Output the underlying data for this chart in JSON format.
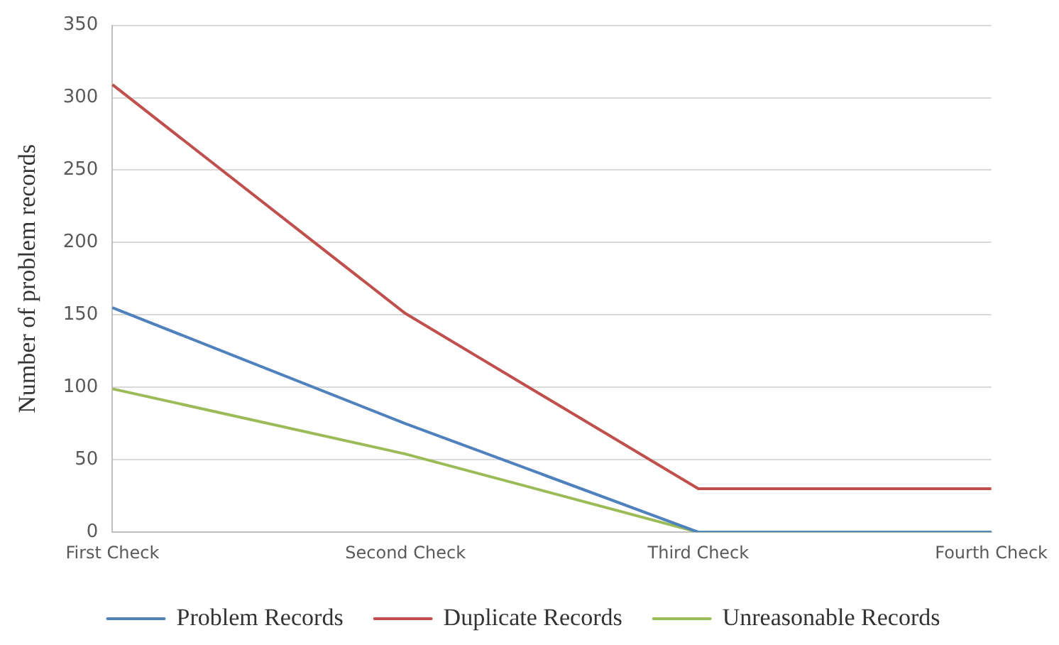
{
  "chart_data": {
    "type": "line",
    "ylabel": "Number of problem records",
    "categories": [
      "First Check",
      "Second Check",
      "Third Check",
      "Fourth Check"
    ],
    "series": [
      {
        "name": "Problem Records",
        "color": "#4f81bd",
        "values": [
          155,
          75,
          0,
          0
        ]
      },
      {
        "name": "Duplicate Records",
        "color": "#c0504d",
        "values": [
          309,
          151,
          30,
          30
        ]
      },
      {
        "name": "Unreasonable Records",
        "color": "#9bbb59",
        "values": [
          99,
          54,
          0,
          0
        ]
      }
    ],
    "ylim": [
      0,
      350
    ],
    "yticks": [
      0,
      50,
      100,
      150,
      200,
      250,
      300,
      350
    ],
    "grid": "y",
    "legend": "bottom",
    "marker": "none",
    "line_style": "solid"
  }
}
